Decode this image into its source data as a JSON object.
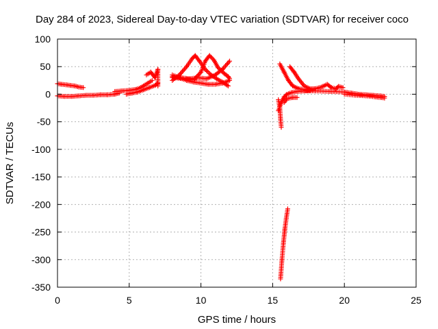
{
  "chart_data": {
    "type": "scatter",
    "title": "Day 284 of 2023, Sidereal Day-to-day VTEC variation (SDTVAR) for receiver coco",
    "xlabel": "GPS time / hours",
    "ylabel": "SDTVAR / TECUs",
    "xlim": [
      0,
      25
    ],
    "ylim": [
      -350,
      100
    ],
    "xticks": [
      0,
      5,
      10,
      15,
      20,
      25
    ],
    "yticks": [
      -350,
      -300,
      -250,
      -200,
      -150,
      -100,
      -50,
      0,
      50,
      100
    ],
    "grid": true,
    "marker": "plus",
    "color": "#ff0000",
    "segments": [
      [
        [
          0.0,
          19
        ],
        [
          0.3,
          18
        ],
        [
          0.6,
          17
        ],
        [
          0.9,
          16
        ],
        [
          1.2,
          15
        ],
        [
          1.5,
          13
        ],
        [
          1.8,
          12
        ]
      ],
      [
        [
          0.0,
          -3
        ],
        [
          0.5,
          -4
        ],
        [
          1.0,
          -4
        ],
        [
          1.5,
          -3
        ],
        [
          2.0,
          -2
        ],
        [
          2.5,
          -2
        ],
        [
          3.0,
          -1
        ],
        [
          3.5,
          -1
        ],
        [
          4.0,
          0
        ],
        [
          4.3,
          2
        ]
      ],
      [
        [
          4.0,
          5
        ],
        [
          4.5,
          6
        ],
        [
          5.0,
          7
        ],
        [
          5.5,
          9
        ],
        [
          5.8,
          12
        ],
        [
          6.0,
          15
        ],
        [
          6.3,
          20
        ],
        [
          6.6,
          25
        ]
      ],
      [
        [
          4.8,
          0
        ],
        [
          5.2,
          2
        ],
        [
          5.6,
          4
        ],
        [
          6.0,
          8
        ],
        [
          6.4,
          12
        ],
        [
          6.8,
          16
        ],
        [
          7.0,
          20
        ]
      ],
      [
        [
          6.2,
          35
        ],
        [
          6.5,
          40
        ],
        [
          6.8,
          30
        ],
        [
          7.0,
          45
        ],
        [
          7.0,
          15
        ]
      ],
      [
        [
          8.0,
          25
        ],
        [
          8.5,
          35
        ],
        [
          9.0,
          50
        ],
        [
          9.4,
          65
        ],
        [
          9.6,
          70
        ],
        [
          9.9,
          60
        ],
        [
          10.3,
          45
        ],
        [
          10.7,
          35
        ],
        [
          11.1,
          28
        ],
        [
          11.5,
          22
        ],
        [
          11.9,
          15
        ]
      ],
      [
        [
          8.0,
          35
        ],
        [
          8.5,
          30
        ],
        [
          9.0,
          25
        ],
        [
          9.5,
          22
        ],
        [
          10.0,
          20
        ],
        [
          10.5,
          18
        ],
        [
          11.0,
          18
        ],
        [
          11.5,
          20
        ],
        [
          12.0,
          25
        ]
      ],
      [
        [
          8.0,
          30
        ],
        [
          8.8,
          28
        ],
        [
          9.5,
          26
        ],
        [
          10.0,
          40
        ],
        [
          10.3,
          60
        ],
        [
          10.6,
          70
        ],
        [
          10.9,
          62
        ],
        [
          11.2,
          48
        ],
        [
          11.6,
          38
        ],
        [
          11.9,
          32
        ],
        [
          12.0,
          28
        ]
      ],
      [
        [
          8.0,
          32
        ],
        [
          8.6,
          30
        ],
        [
          9.2,
          28
        ],
        [
          9.8,
          30
        ],
        [
          10.4,
          28
        ],
        [
          11.0,
          35
        ],
        [
          11.5,
          45
        ],
        [
          12.0,
          60
        ]
      ],
      [
        [
          15.4,
          -10
        ],
        [
          15.5,
          -25
        ],
        [
          15.55,
          -45
        ],
        [
          15.6,
          -60
        ]
      ],
      [
        [
          15.4,
          -30
        ],
        [
          15.6,
          -15
        ],
        [
          15.8,
          -5
        ],
        [
          16.0,
          0
        ],
        [
          16.3,
          3
        ],
        [
          16.7,
          5
        ],
        [
          17.2,
          6
        ],
        [
          17.6,
          7
        ]
      ],
      [
        [
          15.5,
          55
        ],
        [
          15.8,
          40
        ],
        [
          16.1,
          25
        ],
        [
          16.4,
          15
        ],
        [
          16.8,
          10
        ],
        [
          17.3,
          8
        ],
        [
          17.8,
          8
        ]
      ],
      [
        [
          16.2,
          50
        ],
        [
          16.5,
          40
        ],
        [
          16.8,
          28
        ],
        [
          17.2,
          15
        ],
        [
          17.6,
          10
        ],
        [
          18.0,
          10
        ]
      ],
      [
        [
          15.8,
          -15
        ],
        [
          16.0,
          -8
        ],
        [
          16.4,
          -6
        ],
        [
          16.7,
          -6
        ]
      ],
      [
        [
          17.5,
          8
        ],
        [
          18.0,
          10
        ],
        [
          18.5,
          14
        ],
        [
          18.8,
          18
        ],
        [
          19.1,
          12
        ],
        [
          19.4,
          10
        ],
        [
          19.6,
          14
        ],
        [
          19.9,
          12
        ]
      ],
      [
        [
          17.0,
          6
        ],
        [
          18.0,
          6
        ],
        [
          19.0,
          5
        ],
        [
          20.0,
          4
        ],
        [
          20.5,
          2
        ],
        [
          21.0,
          0
        ],
        [
          21.5,
          -1
        ],
        [
          22.0,
          -2
        ],
        [
          22.5,
          -3
        ],
        [
          22.8,
          -4
        ]
      ],
      [
        [
          20.0,
          0
        ],
        [
          20.8,
          -2
        ],
        [
          21.5,
          -3
        ],
        [
          22.2,
          -5
        ],
        [
          22.8,
          -7
        ]
      ],
      [
        [
          15.55,
          -335
        ],
        [
          15.65,
          -300
        ],
        [
          15.75,
          -270
        ],
        [
          15.85,
          -245
        ],
        [
          15.95,
          -225
        ],
        [
          16.05,
          -208
        ]
      ]
    ]
  }
}
